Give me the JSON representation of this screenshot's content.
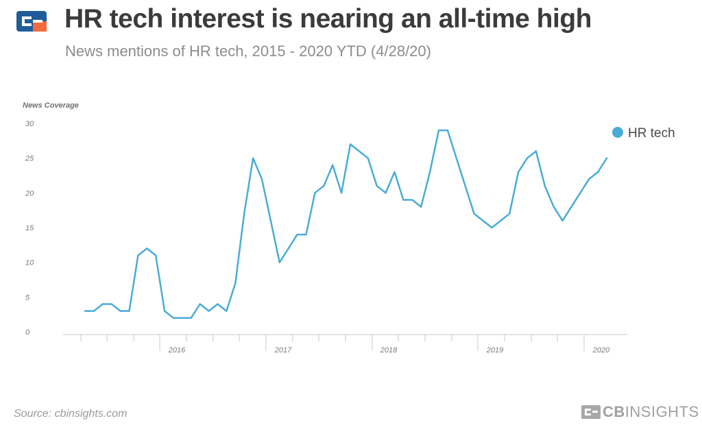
{
  "header": {
    "title": "HR tech interest is nearing an all-time high",
    "subtitle": "News mentions of HR tech, 2015 - 2020 YTD (4/28/20)"
  },
  "footer": {
    "source": "Source: cbinsights.com",
    "brand_bold": "CB",
    "brand_light": "INSIGHTS"
  },
  "colors": {
    "series": "#4aabd6",
    "logo_blue": "#1f5c99",
    "logo_orange": "#f26b3a",
    "axis": "#c8c8c8",
    "tick_text": "#7a7a7a"
  },
  "chart_data": {
    "type": "line",
    "title": "HR tech interest is nearing an all-time high",
    "subtitle": "News mentions of HR tech, 2015 - 2020 YTD (4/28/20)",
    "ylabel": "News Coverage",
    "xlabel": "",
    "ylim": [
      0,
      30
    ],
    "yticks": [
      0,
      5,
      10,
      15,
      20,
      25,
      30
    ],
    "year_labels": [
      "2016",
      "2017",
      "2018",
      "2019",
      "2020"
    ],
    "grid": false,
    "legend_position": "top-right",
    "series": [
      {
        "name": "HR tech",
        "values": [
          3,
          3,
          4,
          4,
          3,
          3,
          11,
          12,
          11,
          3,
          2,
          2,
          2,
          4,
          3,
          4,
          3,
          7,
          17,
          25,
          22,
          16,
          10,
          12,
          14,
          14,
          20,
          21,
          24,
          20,
          27,
          26,
          25,
          21,
          20,
          23,
          19,
          19,
          18,
          23,
          29,
          29,
          25,
          21,
          17,
          16,
          15,
          16,
          17,
          23,
          25,
          26,
          21,
          18,
          16,
          18,
          20,
          22,
          23,
          25
        ]
      }
    ]
  }
}
